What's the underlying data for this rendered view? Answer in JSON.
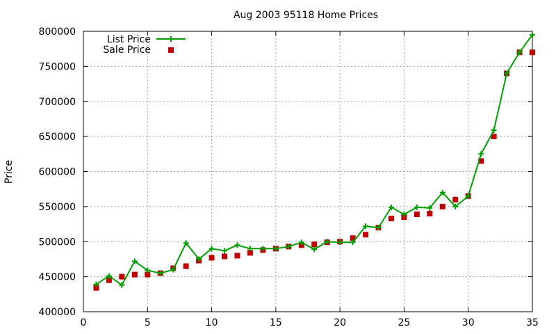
{
  "chart_data": {
    "type": "line",
    "title": "Aug 2003 95118 Home Prices",
    "xlabel": "",
    "ylabel": "Price",
    "xlim": [
      0,
      35
    ],
    "ylim": [
      400000,
      800000
    ],
    "x_ticks": [
      0,
      5,
      10,
      15,
      20,
      25,
      30,
      35
    ],
    "y_ticks": [
      400000,
      450000,
      500000,
      550000,
      600000,
      650000,
      700000,
      750000,
      800000
    ],
    "grid": true,
    "legend_position": "top-left",
    "series": [
      {
        "name": "List Price",
        "style": "linespoints",
        "marker": "plus",
        "color": "#00a000",
        "x": [
          1,
          2,
          3,
          4,
          5,
          6,
          7,
          8,
          9,
          10,
          11,
          12,
          13,
          14,
          15,
          16,
          17,
          18,
          19,
          20,
          21,
          22,
          23,
          24,
          25,
          26,
          27,
          28,
          29,
          30,
          31,
          32,
          33,
          34,
          35
        ],
        "y": [
          439000,
          451000,
          438000,
          472000,
          459000,
          455000,
          460000,
          498000,
          475000,
          490000,
          487000,
          495000,
          490000,
          490000,
          490000,
          493000,
          499000,
          489000,
          500000,
          499000,
          499000,
          522000,
          520000,
          549000,
          539000,
          549000,
          548000,
          570000,
          550000,
          565000,
          625000,
          659000,
          740000,
          770000,
          795000
        ]
      },
      {
        "name": "Sale Price",
        "style": "points",
        "marker": "square",
        "color": "#c00000",
        "x": [
          1,
          2,
          3,
          4,
          5,
          6,
          7,
          8,
          9,
          10,
          11,
          12,
          13,
          14,
          15,
          16,
          17,
          18,
          19,
          20,
          21,
          22,
          23,
          24,
          25,
          26,
          27,
          28,
          29,
          30,
          31,
          32,
          33,
          34,
          35
        ],
        "y": [
          434000,
          445000,
          450000,
          453000,
          453000,
          455000,
          462000,
          465000,
          473000,
          477000,
          479000,
          480000,
          484000,
          488000,
          490000,
          493000,
          495000,
          496000,
          499000,
          500000,
          505000,
          510000,
          520000,
          533000,
          535000,
          539000,
          540000,
          550000,
          560000,
          565000,
          615000,
          650000,
          740000,
          770000,
          770000
        ]
      }
    ]
  }
}
